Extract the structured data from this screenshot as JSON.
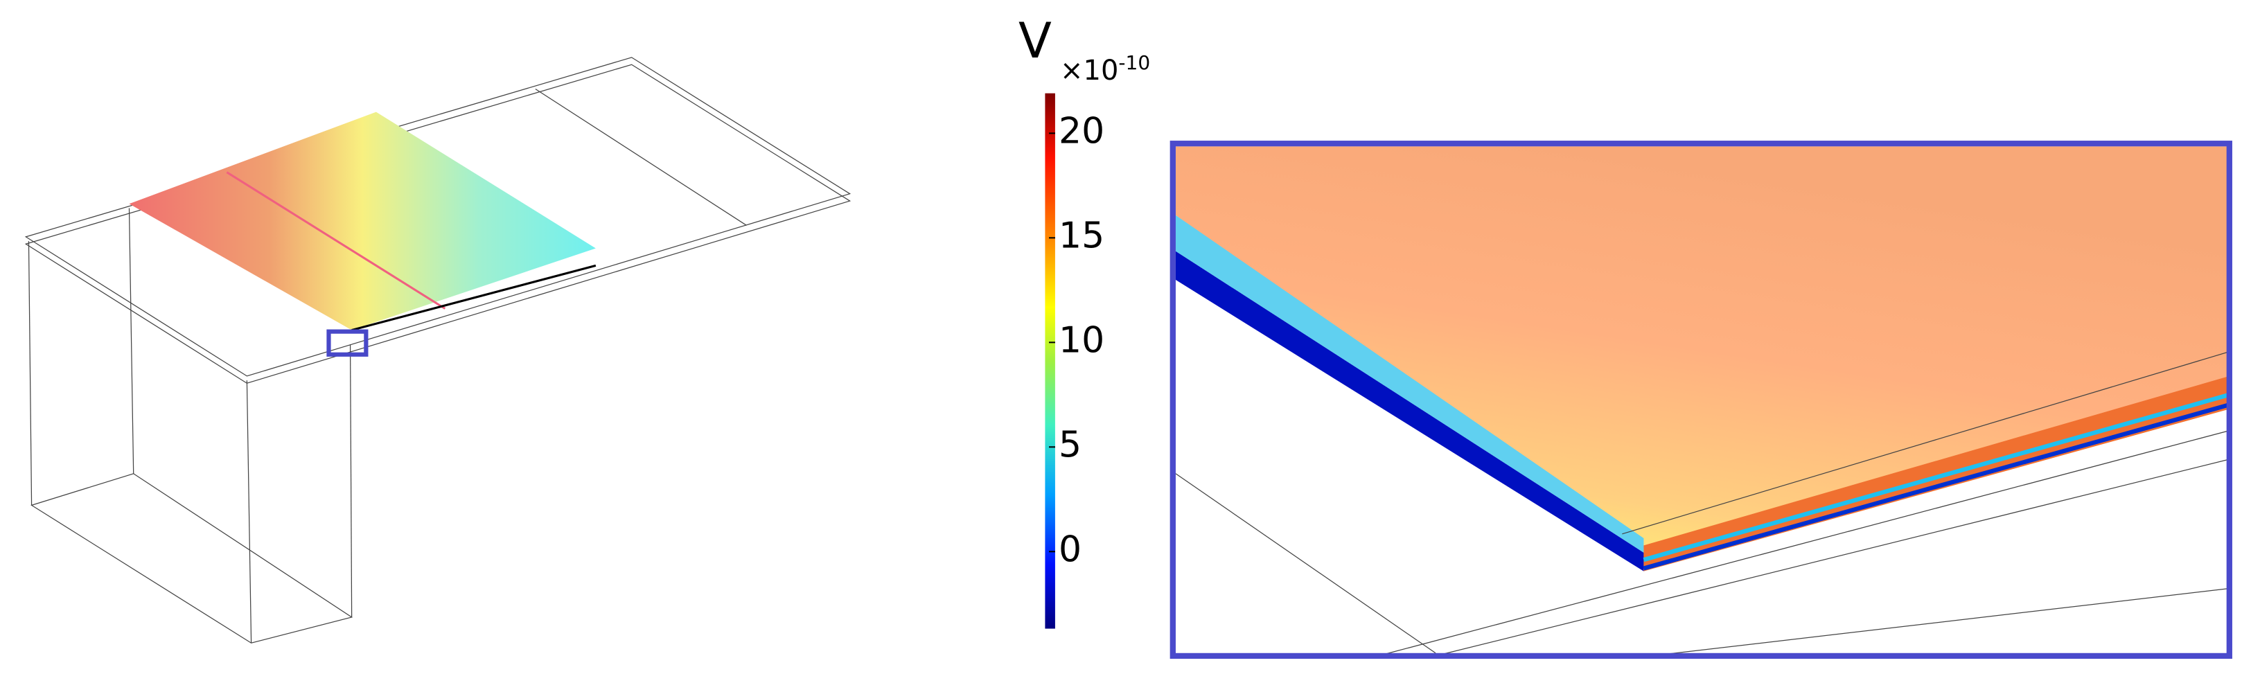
{
  "colorbar": {
    "label": "V",
    "multiplier": "×10",
    "exponent": "-10",
    "lim": [
      -3.7,
      21.9
    ],
    "ticks": [
      0,
      5,
      10,
      15,
      20
    ]
  }
}
